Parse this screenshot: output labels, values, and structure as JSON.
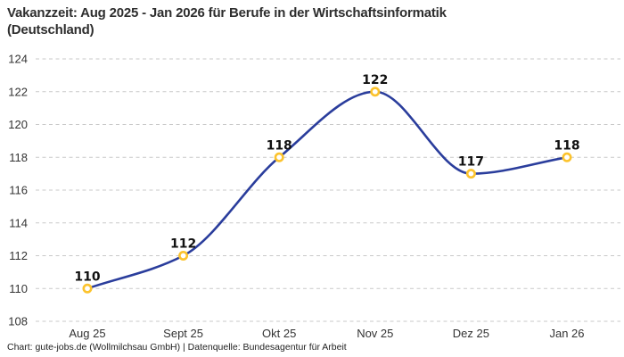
{
  "header": {
    "title_line1": "Vakanzzeit: Aug 2025 - Jan 2026 für Berufe in der Wirtschaftsinformatik",
    "title_line2": "(Deutschland)"
  },
  "footer": {
    "credit": "Chart: gute-jobs.de (Wollmilchsau GmbH) | Datenquelle: Bundesagentur für Arbeit"
  },
  "chart_data": {
    "type": "line",
    "title": "Vakanzzeit: Aug 2025 - Jan 2026 für Berufe in der Wirtschaftsinformatik (Deutschland)",
    "categories": [
      "Aug 25",
      "Sept 25",
      "Okt 25",
      "Nov 25",
      "Dez 25",
      "Jan 26"
    ],
    "series": [
      {
        "name": "Vakanzzeit",
        "values": [
          110,
          112,
          118,
          122,
          117,
          118
        ]
      }
    ],
    "data_labels": [
      "110",
      "112",
      "118",
      "122",
      "117",
      "118"
    ],
    "ylim": [
      108,
      124
    ],
    "yticks": [
      108,
      110,
      112,
      114,
      116,
      118,
      120,
      122,
      124
    ],
    "xlabel": "",
    "ylabel": "",
    "legend": "none",
    "grid": "horizontal-dashed",
    "curve": "smooth-monotone",
    "colors": {
      "line": "#2a3d9c",
      "marker_stroke": "#fcc32d",
      "marker_fill": "#ffffff",
      "grid": "#c9c9c9",
      "axis_text": "#333333",
      "data_label": "#111111",
      "background": "#ffffff"
    }
  }
}
